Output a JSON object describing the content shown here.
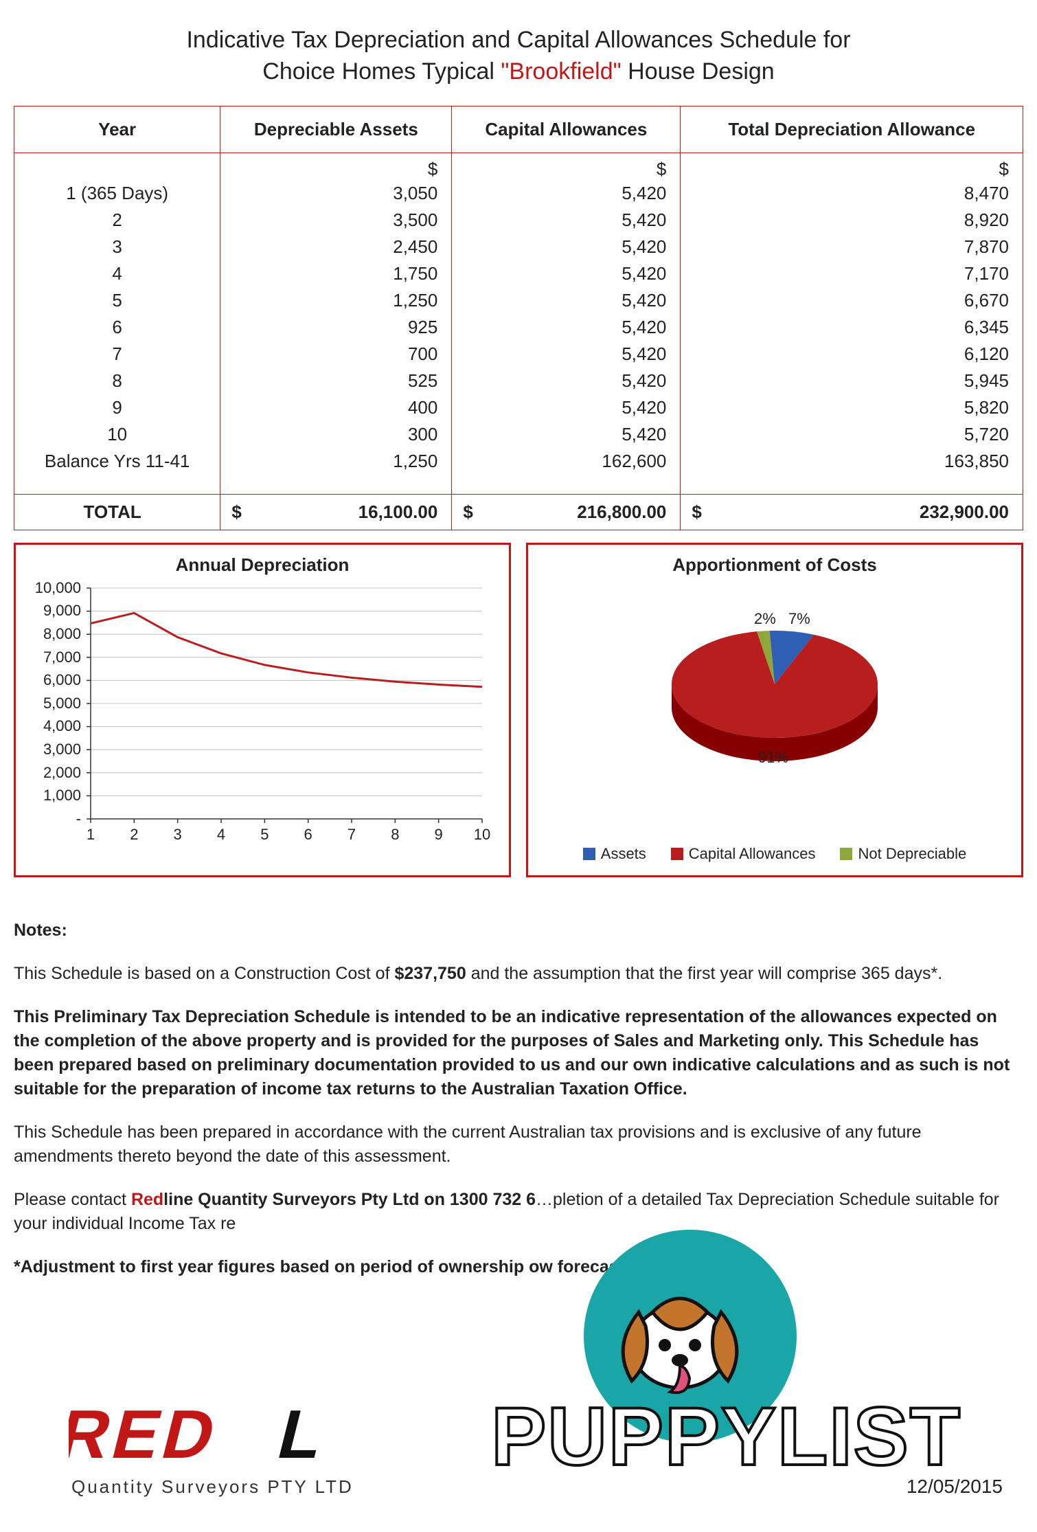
{
  "title": {
    "line1": "Indicative Tax Depreciation and Capital Allowances Schedule for",
    "line2_pre": "Choice Homes Typical ",
    "line2_highlight": "\"Brookfield\"",
    "line2_post": " House Design"
  },
  "table": {
    "headers": [
      "Year",
      "Depreciable Assets",
      "Capital Allowances",
      "Total Depreciation Allowance"
    ],
    "currency_row": [
      "",
      "$",
      "$",
      "$"
    ],
    "rows": [
      [
        "1 (365 Days)",
        "3,050",
        "5,420",
        "8,470"
      ],
      [
        "2",
        "3,500",
        "5,420",
        "8,920"
      ],
      [
        "3",
        "2,450",
        "5,420",
        "7,870"
      ],
      [
        "4",
        "1,750",
        "5,420",
        "7,170"
      ],
      [
        "5",
        "1,250",
        "5,420",
        "6,670"
      ],
      [
        "6",
        "925",
        "5,420",
        "6,345"
      ],
      [
        "7",
        "700",
        "5,420",
        "6,120"
      ],
      [
        "8",
        "525",
        "5,420",
        "5,945"
      ],
      [
        "9",
        "400",
        "5,420",
        "5,820"
      ],
      [
        "10",
        "300",
        "5,420",
        "5,720"
      ],
      [
        "Balance Yrs 11-41",
        "1,250",
        "162,600",
        "163,850"
      ]
    ],
    "total": [
      "TOTAL",
      "16,100.00",
      "216,800.00",
      "232,900.00"
    ],
    "total_prefix": "$"
  },
  "line_chart": {
    "title": "Annual Depreciation",
    "x": [
      1,
      2,
      3,
      4,
      5,
      6,
      7,
      8,
      9,
      10
    ],
    "y": [
      8470,
      8920,
      7870,
      7170,
      6670,
      6345,
      6120,
      5945,
      5820,
      5720
    ],
    "ylim": [
      0,
      10000
    ],
    "ytick_step": 1000,
    "ytick_labels": [
      "-",
      "1,000",
      "2,000",
      "3,000",
      "4,000",
      "5,000",
      "6,000",
      "7,000",
      "8,000",
      "9,000",
      "10,000"
    ],
    "line_color": "#b81e1e",
    "line_width": 3,
    "grid_color": "#bfbfbf",
    "axis_color": "#333",
    "font_size": 22
  },
  "pie": {
    "title": "Apportionment of Costs",
    "slices": [
      {
        "label": "Assets",
        "pct": 7,
        "color": "#2f5fb3"
      },
      {
        "label": "Capital Allowances",
        "pct": 91,
        "color": "#b81e1e"
      },
      {
        "label": "Not Depreciable",
        "pct": 2,
        "color": "#8ea63a"
      }
    ],
    "label_7": "7%",
    "label_91": "91%",
    "label_2": "2%",
    "font_size": 22
  },
  "notes": {
    "heading": "Notes:",
    "p1a": "This Schedule is based on a Construction Cost of ",
    "p1b": "$237,750",
    "p1c": " and the assumption that the first year will comprise 365 days*.",
    "p2": "This Preliminary Tax Depreciation Schedule is intended to be an indicative representation of the allowances expected on the completion of the above property and is provided for the purposes of Sales and Marketing only.  This Schedule has been prepared based on preliminary documentation provided to us and our own indicative calculations and as such is not suitable for the preparation of income tax returns to the Australian Taxation Office.",
    "p3": "This Schedule has been prepared in accordance with the current Australian tax provisions and is exclusive of any future amendments thereto beyond the date of this assessment.",
    "p4a": "Please contact ",
    "p4red": "Red",
    "p4b": "line Quantity Surveyors Pty Ltd on 1300 732 6",
    "p4c": "…pletion of a detailed Tax Depreciation Schedule suitable for your individual Income Tax re",
    "p5": "*Adjustment to first year figures based on period of ownership                              ow forecasts."
  },
  "footer": {
    "brand_red": "RED",
    "brand_rest": "L",
    "subtitle": "Quantity Surveyors PTY LTD",
    "date": "12/05/2015",
    "overlay": "PUPPYLIST"
  },
  "colors": {
    "brand_red": "#c21717"
  }
}
